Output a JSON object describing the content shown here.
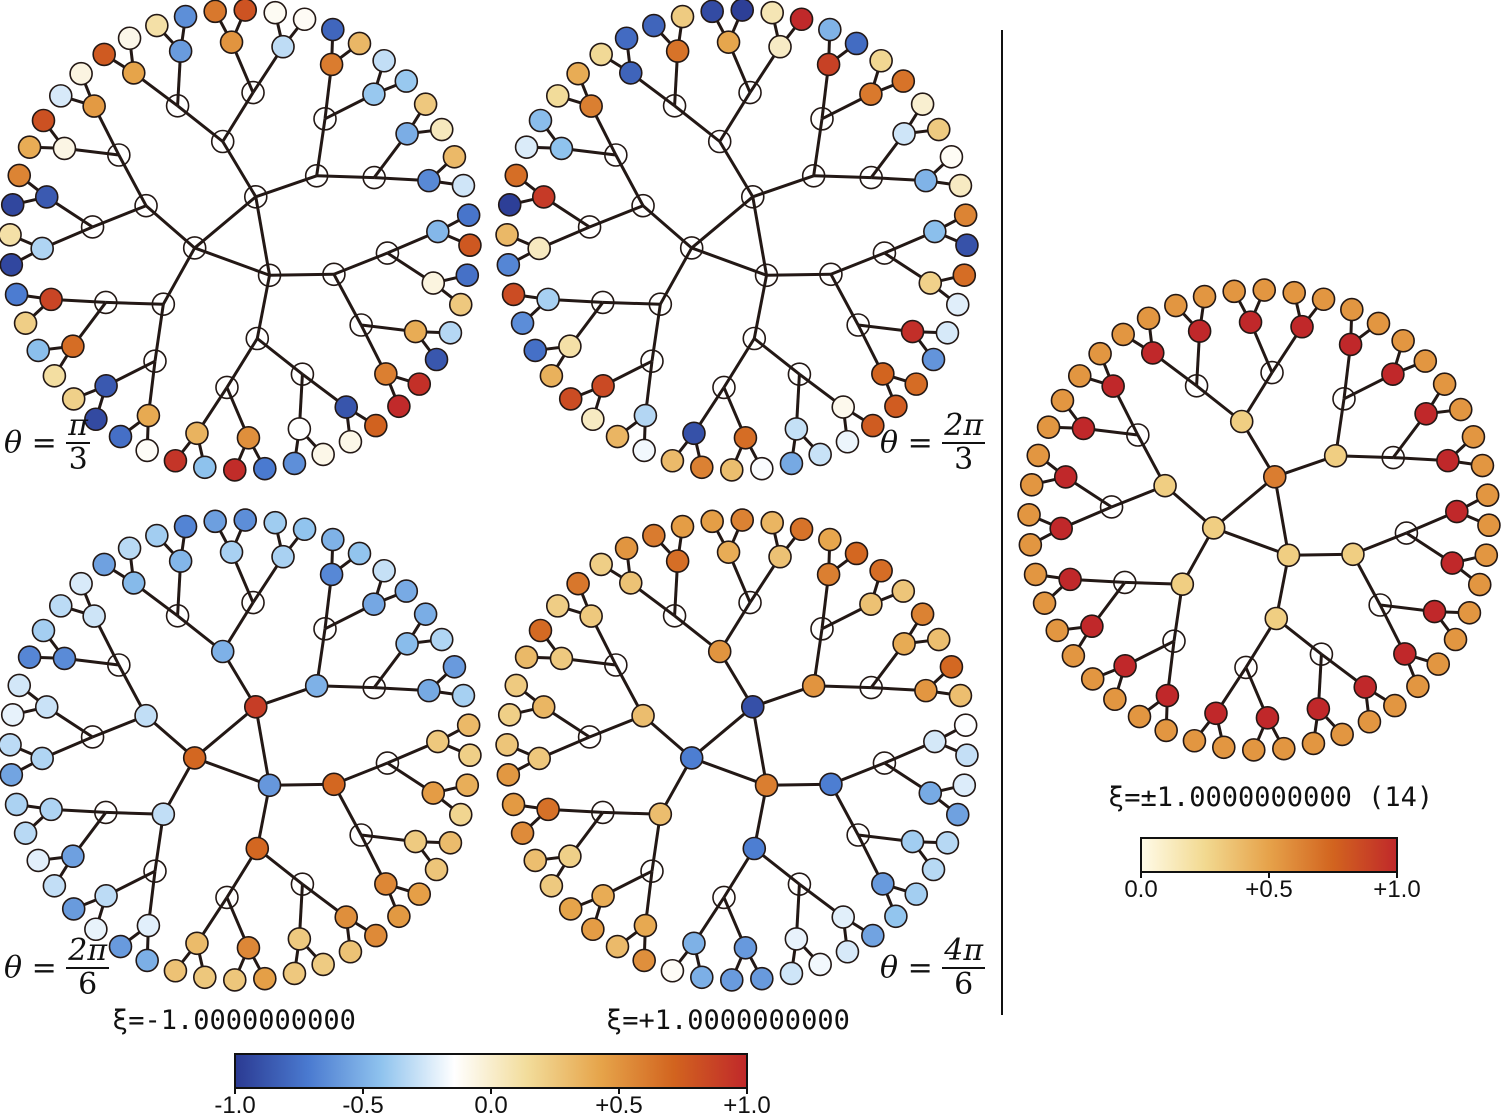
{
  "panels": [
    {
      "id": "p1",
      "theta_lhs": "θ =",
      "theta_num": "π",
      "theta_den": "3",
      "pattern": "random1"
    },
    {
      "id": "p2",
      "theta_lhs": "θ =",
      "theta_num": "2π",
      "theta_den": "3",
      "pattern": "random2"
    },
    {
      "id": "p3",
      "theta_lhs": "θ =",
      "theta_num": "2π",
      "theta_den": "6",
      "pattern": "neg"
    },
    {
      "id": "p4",
      "theta_lhs": "θ =",
      "theta_num": "4π",
      "theta_den": "6",
      "pattern": "pos"
    },
    {
      "id": "p5",
      "pattern": "sym"
    }
  ],
  "xi_labels": {
    "left": "ξ=-1.0000000000",
    "middle": "ξ=+1.0000000000",
    "right": "ξ=±1.0000000000 (14)"
  },
  "colorbar_diverging": {
    "ticks": [
      "-1.0",
      "-0.5",
      "0.0",
      "+0.5",
      "+1.0"
    ],
    "colors": [
      "#2b3a92",
      "#4a7ad0",
      "#8fc3ee",
      "#ffffff",
      "#f2dc9a",
      "#e6a44a",
      "#d2641f",
      "#c0282a"
    ]
  },
  "colorbar_sequential": {
    "ticks": [
      "0.0",
      "+0.5",
      "+1.0"
    ],
    "colors": [
      "#fffbe8",
      "#f2d990",
      "#e6a24a",
      "#d2641f",
      "#c0282a"
    ]
  },
  "node_colors": {
    "empty": "#ffffff",
    "edge": "#231815"
  }
}
